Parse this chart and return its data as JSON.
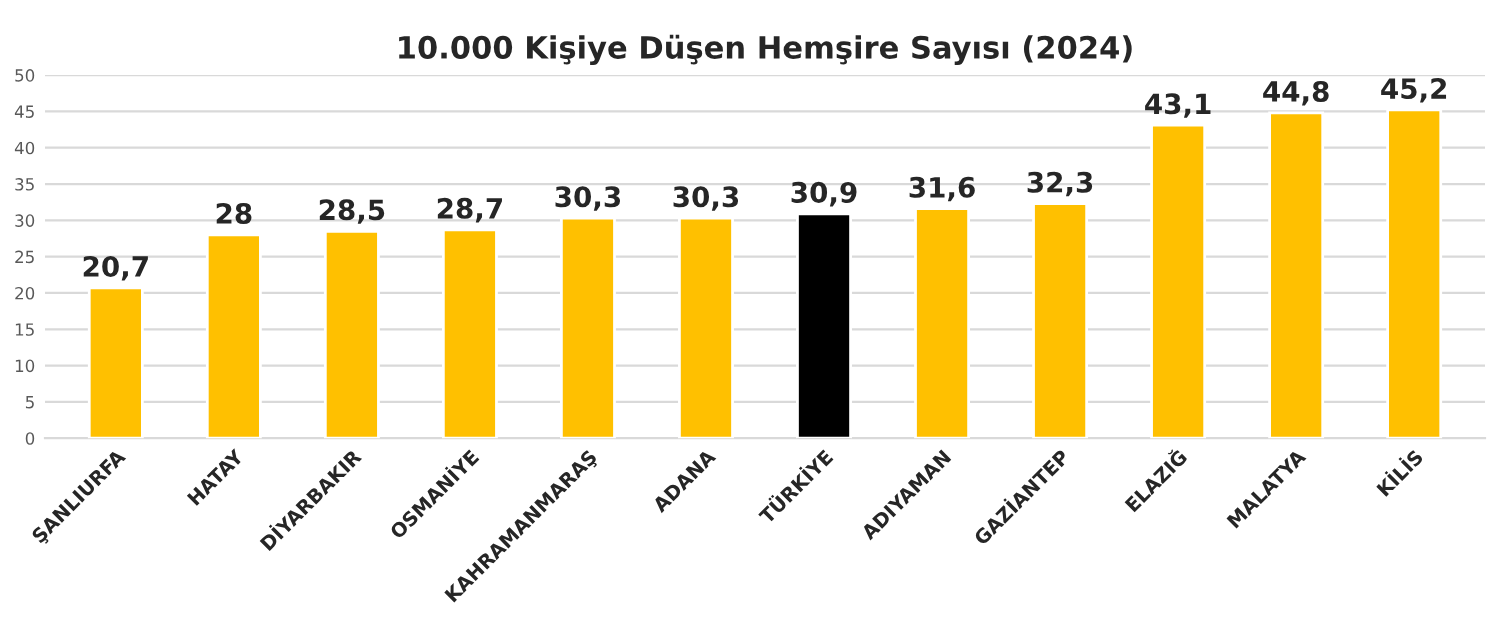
{
  "chart_data": {
    "type": "bar",
    "title": "10.000 Kişiye Düşen Hemşire Sayısı (2024)",
    "categories": [
      "ŞANLIURFA",
      "HATAY",
      "DİYARBAKIR",
      "OSMANİYE",
      "KAHRAMANMARAŞ",
      "ADANA",
      "TÜRKİYE",
      "ADIYAMAN",
      "GAZİANTEP",
      "ELAZIĞ",
      "MALATYA",
      "KİLİS"
    ],
    "values": [
      20.7,
      28,
      28.5,
      28.7,
      30.3,
      30.3,
      30.9,
      31.6,
      32.3,
      43.1,
      44.8,
      45.2
    ],
    "value_labels": [
      "20,7",
      "28",
      "28,5",
      "28,7",
      "30,3",
      "30,3",
      "30,9",
      "31,6",
      "32,3",
      "43,1",
      "44,8",
      "45,2"
    ],
    "colors": [
      "#ffc000",
      "#ffc000",
      "#ffc000",
      "#ffc000",
      "#ffc000",
      "#ffc000",
      "#000000",
      "#ffc000",
      "#ffc000",
      "#ffc000",
      "#ffc000",
      "#ffc000"
    ],
    "ylim": [
      0,
      50
    ],
    "yticks": [
      0,
      5,
      10,
      15,
      20,
      25,
      30,
      35,
      40,
      45,
      50
    ],
    "grid": "y"
  }
}
